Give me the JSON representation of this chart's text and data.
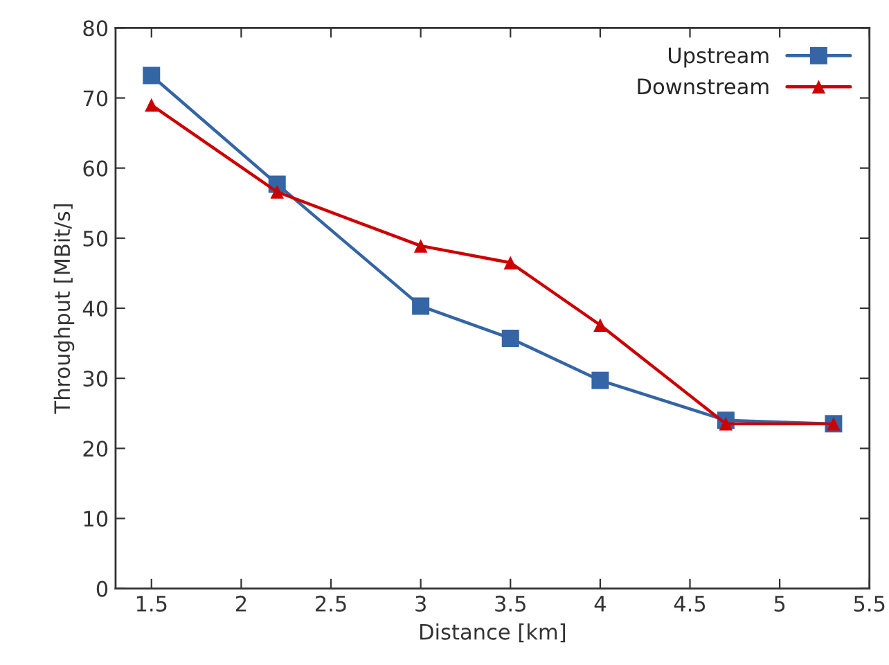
{
  "chart_data": {
    "type": "line",
    "xlabel": "Distance [km]",
    "ylabel": "Throughput [MBit/s]",
    "x": [
      1.5,
      2.2,
      3,
      3.5,
      4,
      4.7,
      5.3
    ],
    "series": [
      {
        "name": "Upstream",
        "color": "#3465a4",
        "marker": "square",
        "values": [
          73.2,
          57.7,
          40.3,
          35.7,
          29.7,
          24.0,
          23.5
        ]
      },
      {
        "name": "Downstream",
        "color": "#cc0000",
        "marker": "triangle",
        "values": [
          69.0,
          56.6,
          48.9,
          46.5,
          37.6,
          23.5,
          23.5
        ]
      }
    ],
    "xlim": [
      1.3,
      5.5
    ],
    "xticks": [
      1.5,
      2,
      2.5,
      3,
      3.5,
      4,
      4.5,
      5,
      5.5
    ],
    "ylim": [
      0,
      80
    ],
    "yticks": [
      0,
      10,
      20,
      30,
      40,
      50,
      60,
      70,
      80
    ],
    "grid": false,
    "legend": "top right",
    "line_style": "solid"
  }
}
